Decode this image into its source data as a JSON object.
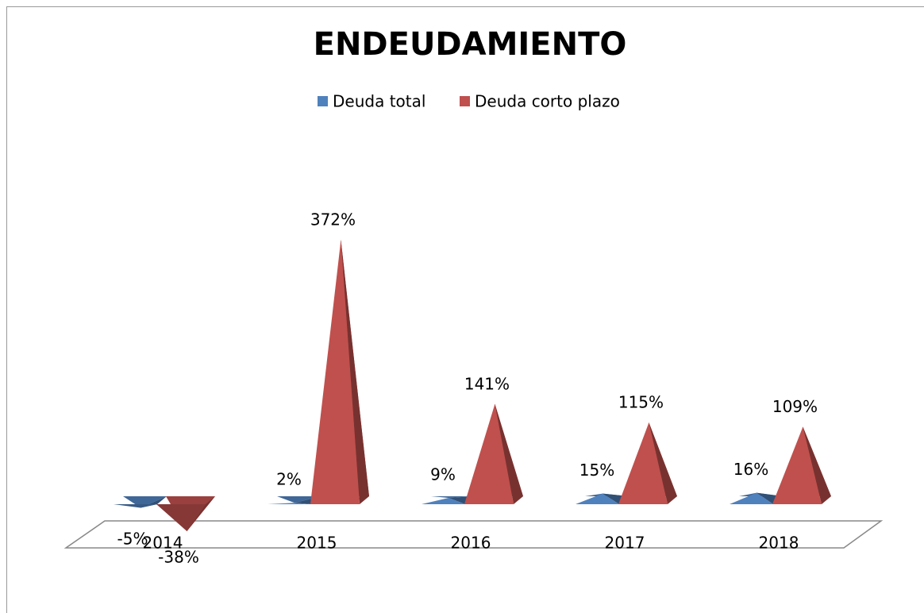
{
  "chart_data": {
    "type": "pyramid",
    "title": "ENDEUDAMIENTO",
    "categories": [
      "2014",
      "2015",
      "2016",
      "2017",
      "2018"
    ],
    "series": [
      {
        "name": "Deuda total",
        "color": "#4f81bd",
        "values": [
          -5,
          2,
          9,
          15,
          16
        ],
        "value_labels": [
          "-5%",
          "2%",
          "9%",
          "15%",
          "16%"
        ]
      },
      {
        "name": "Deuda corto plazo",
        "color": "#c0504d",
        "values": [
          -38,
          372,
          141,
          115,
          109
        ],
        "value_labels": [
          "-38%",
          "372%",
          "141%",
          "115%",
          "109%"
        ]
      }
    ],
    "legend": "top"
  }
}
